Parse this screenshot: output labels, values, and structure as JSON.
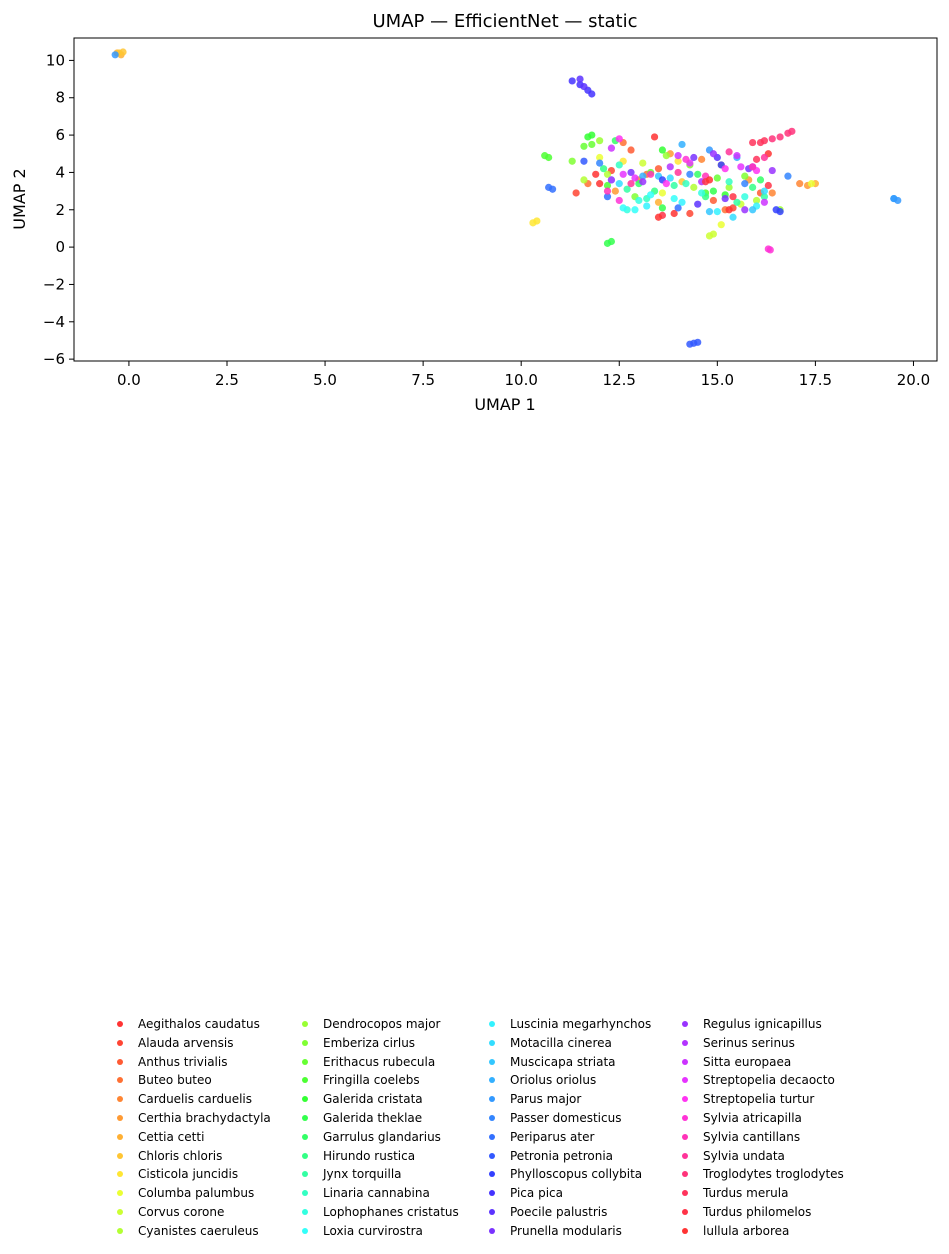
{
  "chart_data": {
    "type": "scatter",
    "title": "UMAP — EfficientNet — static",
    "xlabel": "UMAP 1",
    "ylabel": "UMAP 2",
    "xlim": [
      -1.4,
      20.6
    ],
    "ylim": [
      -6.1,
      11.2
    ],
    "xticks": [
      {
        "v": 0,
        "label": "0.0"
      },
      {
        "v": 2.5,
        "label": "2.5"
      },
      {
        "v": 5,
        "label": "5.0"
      },
      {
        "v": 7.5,
        "label": "7.5"
      },
      {
        "v": 10,
        "label": "10.0"
      },
      {
        "v": 12.5,
        "label": "12.5"
      },
      {
        "v": 15,
        "label": "15.0"
      },
      {
        "v": 17.5,
        "label": "17.5"
      },
      {
        "v": 20,
        "label": "20.0"
      }
    ],
    "yticks": [
      {
        "v": 10,
        "label": "10"
      },
      {
        "v": 8,
        "label": "8"
      },
      {
        "v": 6,
        "label": "6"
      },
      {
        "v": 4,
        "label": "4"
      },
      {
        "v": 2,
        "label": "2"
      },
      {
        "v": 0,
        "label": "0"
      },
      {
        "v": -2,
        "label": "−2"
      },
      {
        "v": -4,
        "label": "−4"
      },
      {
        "v": -6,
        "label": "−6"
      }
    ],
    "grid": false,
    "legend_position": "below, 4 columns",
    "series": [
      {
        "name": "Aegithalos caudatus",
        "color": "#ff3333",
        "points": [
          [
            13.4,
            5.9
          ],
          [
            13.9,
            1.8
          ],
          [
            11.9,
            3.9
          ],
          [
            16.3,
            5.0
          ]
        ]
      },
      {
        "name": "Alauda arvensis",
        "color": "#ff4533",
        "points": [
          [
            11.4,
            2.9
          ],
          [
            12.3,
            4.1
          ],
          [
            14.3,
            1.8
          ],
          [
            15.4,
            2.1
          ]
        ]
      },
      {
        "name": "Anthus trivialis",
        "color": "#ff5a33",
        "points": [
          [
            12.8,
            5.2
          ],
          [
            13.5,
            4.2
          ],
          [
            14.9,
            2.5
          ],
          [
            16.1,
            2.9
          ]
        ]
      },
      {
        "name": "Buteo buteo",
        "color": "#ff7033",
        "points": [
          [
            12.6,
            5.6
          ],
          [
            13.2,
            3.9
          ],
          [
            15.2,
            2.0
          ],
          [
            11.7,
            3.4
          ]
        ]
      },
      {
        "name": "Carduelis carduelis",
        "color": "#ff8533",
        "points": [
          [
            13.0,
            3.6
          ],
          [
            14.6,
            4.7
          ],
          [
            16.4,
            2.9
          ],
          [
            17.1,
            3.4
          ]
        ]
      },
      {
        "name": "Certhia brachydactyla",
        "color": "#ff9a33",
        "points": [
          [
            13.8,
            5.0
          ],
          [
            12.4,
            3.0
          ],
          [
            15.8,
            3.6
          ],
          [
            17.3,
            3.3
          ]
        ]
      },
      {
        "name": "Cettia cetti",
        "color": "#ffb033",
        "points": [
          [
            -0.3,
            10.4
          ],
          [
            -0.2,
            10.3
          ],
          [
            17.5,
            3.4
          ],
          [
            13.5,
            2.4
          ]
        ]
      },
      {
        "name": "Chloris chloris",
        "color": "#ffc533",
        "points": [
          [
            -0.25,
            10.4
          ],
          [
            -0.15,
            10.45
          ],
          [
            14.1,
            3.5
          ],
          [
            15.1,
            4.4
          ]
        ]
      },
      {
        "name": "Cisticola juncidis",
        "color": "#ffe633",
        "points": [
          [
            10.4,
            1.4
          ],
          [
            10.3,
            1.3
          ],
          [
            14.0,
            4.6
          ],
          [
            12.6,
            4.6
          ]
        ]
      },
      {
        "name": "Columba palumbus",
        "color": "#ebff33",
        "points": [
          [
            15.1,
            1.2
          ],
          [
            13.6,
            2.9
          ],
          [
            17.4,
            3.4
          ],
          [
            12.0,
            4.8
          ]
        ]
      },
      {
        "name": "Corvus corone",
        "color": "#ccff33",
        "points": [
          [
            14.9,
            0.7
          ],
          [
            14.8,
            0.6
          ],
          [
            13.1,
            4.5
          ],
          [
            15.6,
            2.3
          ]
        ]
      },
      {
        "name": "Cyanistes caeruleus",
        "color": "#b3ff33",
        "points": [
          [
            12.2,
            3.9
          ],
          [
            14.4,
            3.2
          ],
          [
            16.0,
            2.5
          ],
          [
            11.6,
            3.6
          ]
        ]
      },
      {
        "name": "Dendrocopos major",
        "color": "#99ff33",
        "points": [
          [
            12.0,
            5.7
          ],
          [
            13.7,
            4.9
          ],
          [
            15.3,
            3.2
          ],
          [
            16.6,
            2.0
          ]
        ]
      },
      {
        "name": "Emberiza cirlus",
        "color": "#80ff33",
        "points": [
          [
            11.3,
            4.6
          ],
          [
            12.9,
            2.7
          ],
          [
            14.3,
            4.4
          ],
          [
            15.7,
            3.8
          ]
        ]
      },
      {
        "name": "Erithacus rubecula",
        "color": "#66ff33",
        "points": [
          [
            11.8,
            5.5
          ],
          [
            11.6,
            5.4
          ],
          [
            13.3,
            4.0
          ],
          [
            15.0,
            3.7
          ]
        ]
      },
      {
        "name": "Fringilla coelebs",
        "color": "#4dff33",
        "points": [
          [
            10.6,
            4.9
          ],
          [
            10.7,
            4.8
          ],
          [
            12.2,
            3.3
          ],
          [
            14.7,
            2.9
          ]
        ]
      },
      {
        "name": "Galerida cristata",
        "color": "#33ff33",
        "points": [
          [
            11.7,
            5.9
          ],
          [
            11.8,
            6.0
          ],
          [
            13.6,
            5.2
          ],
          [
            15.2,
            2.8
          ]
        ]
      },
      {
        "name": "Galerida theklae",
        "color": "#33ff4d",
        "points": [
          [
            12.2,
            0.2
          ],
          [
            12.3,
            0.3
          ],
          [
            13.6,
            2.1
          ],
          [
            14.9,
            3.0
          ]
        ]
      },
      {
        "name": "Garrulus glandarius",
        "color": "#33ff66",
        "points": [
          [
            12.4,
            5.7
          ],
          [
            13.0,
            3.4
          ],
          [
            14.5,
            3.9
          ],
          [
            16.1,
            3.6
          ]
        ]
      },
      {
        "name": "Hirundo rustica",
        "color": "#33ff85",
        "points": [
          [
            12.1,
            4.2
          ],
          [
            13.4,
            3.0
          ],
          [
            14.7,
            2.7
          ],
          [
            15.9,
            3.2
          ]
        ]
      },
      {
        "name": "Jynx torquilla",
        "color": "#33ffa3",
        "points": [
          [
            12.7,
            3.1
          ],
          [
            13.9,
            3.3
          ],
          [
            15.5,
            2.4
          ],
          [
            16.2,
            2.7
          ]
        ]
      },
      {
        "name": "Linaria cannabina",
        "color": "#33ffc2",
        "points": [
          [
            13.2,
            2.6
          ],
          [
            14.2,
            3.4
          ],
          [
            15.3,
            3.5
          ],
          [
            12.5,
            4.4
          ]
        ]
      },
      {
        "name": "Lophophanes cristatus",
        "color": "#33ffe0",
        "points": [
          [
            12.7,
            2.0
          ],
          [
            13.0,
            2.5
          ],
          [
            14.6,
            2.9
          ],
          [
            15.7,
            2.7
          ]
        ]
      },
      {
        "name": "Loxia curvirostra",
        "color": "#33fffa",
        "points": [
          [
            12.9,
            2.0
          ],
          [
            13.3,
            2.8
          ],
          [
            13.9,
            2.6
          ],
          [
            12.6,
            2.1
          ]
        ]
      },
      {
        "name": "Luscinia megarhynchos",
        "color": "#33f2ff",
        "points": [
          [
            13.2,
            2.2
          ],
          [
            14.1,
            2.4
          ],
          [
            15.0,
            1.9
          ],
          [
            16.0,
            2.2
          ]
        ]
      },
      {
        "name": "Motacilla cinerea",
        "color": "#33ddff",
        "points": [
          [
            12.5,
            3.4
          ],
          [
            13.8,
            3.7
          ],
          [
            15.4,
            1.6
          ],
          [
            16.2,
            3.0
          ]
        ]
      },
      {
        "name": "Muscicapa striata",
        "color": "#33c7ff",
        "points": [
          [
            14.8,
            1.9
          ],
          [
            13.5,
            3.8
          ],
          [
            12.3,
            3.6
          ],
          [
            15.9,
            2.0
          ]
        ]
      },
      {
        "name": "Oriolus oriolus",
        "color": "#33b0ff",
        "points": [
          [
            19.5,
            2.6
          ],
          [
            14.1,
            5.5
          ],
          [
            15.5,
            4.8
          ],
          [
            13.1,
            3.8
          ]
        ]
      },
      {
        "name": "Parus major",
        "color": "#3399ff",
        "points": [
          [
            19.6,
            2.5
          ],
          [
            19.5,
            2.6
          ],
          [
            -0.35,
            10.3
          ],
          [
            14.8,
            5.2
          ]
        ]
      },
      {
        "name": "Passer domesticus",
        "color": "#3385ff",
        "points": [
          [
            12.0,
            4.5
          ],
          [
            14.3,
            3.9
          ],
          [
            15.7,
            3.4
          ],
          [
            16.8,
            3.8
          ]
        ]
      },
      {
        "name": "Periparus ater",
        "color": "#3370ff",
        "points": [
          [
            10.8,
            3.1
          ],
          [
            10.7,
            3.2
          ],
          [
            12.2,
            2.7
          ],
          [
            14.0,
            2.1
          ]
        ]
      },
      {
        "name": "Petronia petronia",
        "color": "#3359ff",
        "points": [
          [
            14.3,
            -5.2
          ],
          [
            14.5,
            -5.1
          ],
          [
            14.4,
            -5.15
          ],
          [
            11.6,
            4.6
          ]
        ]
      },
      {
        "name": "Phylloscopus collybita",
        "color": "#3340ff",
        "points": [
          [
            16.6,
            1.9
          ],
          [
            16.5,
            2.0
          ],
          [
            15.1,
            4.4
          ],
          [
            13.6,
            3.6
          ]
        ]
      },
      {
        "name": "Pica pica",
        "color": "#4433ff",
        "points": [
          [
            11.3,
            8.9
          ],
          [
            11.5,
            8.7
          ],
          [
            11.7,
            8.4
          ],
          [
            11.8,
            8.2
          ]
        ]
      },
      {
        "name": "Poecile palustris",
        "color": "#5c33ff",
        "points": [
          [
            11.5,
            9.0
          ],
          [
            11.6,
            8.6
          ],
          [
            15.0,
            4.8
          ],
          [
            14.5,
            2.3
          ]
        ]
      },
      {
        "name": "Prunella modularis",
        "color": "#7a33ff",
        "points": [
          [
            12.8,
            4.0
          ],
          [
            14.4,
            4.8
          ],
          [
            15.8,
            4.2
          ],
          [
            15.2,
            2.6
          ]
        ]
      },
      {
        "name": "Regulus ignicapillus",
        "color": "#9933ff",
        "points": [
          [
            13.1,
            3.5
          ],
          [
            14.9,
            5.0
          ],
          [
            16.4,
            4.1
          ],
          [
            15.7,
            2.0
          ]
        ]
      },
      {
        "name": "Serinus serinus",
        "color": "#b333ff",
        "points": [
          [
            12.3,
            3.6
          ],
          [
            15.9,
            4.3
          ],
          [
            13.8,
            4.3
          ],
          [
            14.6,
            3.5
          ]
        ]
      },
      {
        "name": "Sitta europaea",
        "color": "#cc33ff",
        "points": [
          [
            12.3,
            5.3
          ],
          [
            14.0,
            4.9
          ],
          [
            15.5,
            4.9
          ],
          [
            16.2,
            2.4
          ]
        ]
      },
      {
        "name": "Streptopelia decaocto",
        "color": "#e633ff",
        "points": [
          [
            12.9,
            3.7
          ],
          [
            14.3,
            4.5
          ],
          [
            15.6,
            4.3
          ],
          [
            12.6,
            3.9
          ]
        ]
      },
      {
        "name": "Streptopelia turtur",
        "color": "#ff33f2",
        "points": [
          [
            12.5,
            5.8
          ],
          [
            13.7,
            3.4
          ],
          [
            15.2,
            4.2
          ],
          [
            16.0,
            4.1
          ]
        ]
      },
      {
        "name": "Sylvia atricapilla",
        "color": "#ff33d6",
        "points": [
          [
            16.3,
            -0.1
          ],
          [
            16.35,
            -0.15
          ],
          [
            14.2,
            4.7
          ],
          [
            12.5,
            2.5
          ]
        ]
      },
      {
        "name": "Sylvia cantillans",
        "color": "#ff33b8",
        "points": [
          [
            13.3,
            3.9
          ],
          [
            14.7,
            3.8
          ],
          [
            15.9,
            4.3
          ],
          [
            12.2,
            3.0
          ]
        ]
      },
      {
        "name": "Sylvia undata",
        "color": "#ff3399",
        "points": [
          [
            14.0,
            4.0
          ],
          [
            15.3,
            5.1
          ],
          [
            16.2,
            4.8
          ],
          [
            12.8,
            3.4
          ]
        ]
      },
      {
        "name": "Troglodytes troglodytes",
        "color": "#ff337a",
        "points": [
          [
            16.6,
            5.9
          ],
          [
            16.8,
            6.1
          ],
          [
            16.9,
            6.2
          ],
          [
            16.4,
            5.8
          ]
        ]
      },
      {
        "name": "Turdus merula",
        "color": "#ff335c",
        "points": [
          [
            16.1,
            5.6
          ],
          [
            16.2,
            5.7
          ],
          [
            16.0,
            4.7
          ],
          [
            15.9,
            5.6
          ]
        ]
      },
      {
        "name": "Turdus philomelos",
        "color": "#ff3347",
        "points": [
          [
            13.6,
            1.7
          ],
          [
            14.7,
            3.5
          ],
          [
            16.3,
            3.3
          ],
          [
            15.4,
            2.7
          ]
        ]
      },
      {
        "name": "lullula arborea",
        "color": "#ff3333",
        "points": [
          [
            13.5,
            1.6
          ],
          [
            14.8,
            3.6
          ],
          [
            12.0,
            3.4
          ],
          [
            15.3,
            2.0
          ]
        ]
      }
    ]
  }
}
